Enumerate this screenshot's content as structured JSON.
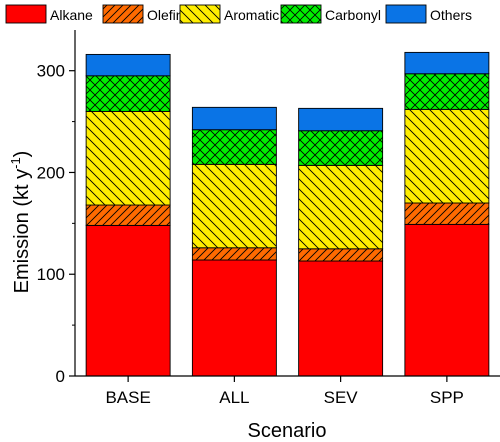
{
  "chart_data": {
    "type": "bar",
    "stacked": true,
    "categories": [
      "BASE",
      "ALL",
      "SEV",
      "SPP"
    ],
    "series": [
      {
        "name": "Alkane",
        "color": "#ff0000",
        "pattern": "solid",
        "values": [
          148,
          114,
          113,
          149
        ]
      },
      {
        "name": "Olefin",
        "color": "#ff6a00",
        "pattern": "diagonal-up",
        "values": [
          20,
          12,
          12,
          21
        ]
      },
      {
        "name": "Aromatic",
        "color": "#ffee00",
        "pattern": "diagonal-down",
        "values": [
          92,
          82,
          82,
          92
        ]
      },
      {
        "name": "Carbonyl",
        "color": "#00ee00",
        "pattern": "crosshatch",
        "values": [
          35,
          34,
          34,
          35
        ]
      },
      {
        "name": "Others",
        "color": "#0a74e6",
        "pattern": "solid",
        "values": [
          21,
          22,
          22,
          21
        ]
      }
    ],
    "xlabel": "Scenario",
    "ylabel": "Emission (kt y",
    "ylabel_superscript": "-1",
    "ylabel_suffix": ")",
    "ylim": [
      0,
      340
    ],
    "yticks": [
      0,
      100,
      200,
      300
    ],
    "legend_position": "top",
    "grid": false
  }
}
